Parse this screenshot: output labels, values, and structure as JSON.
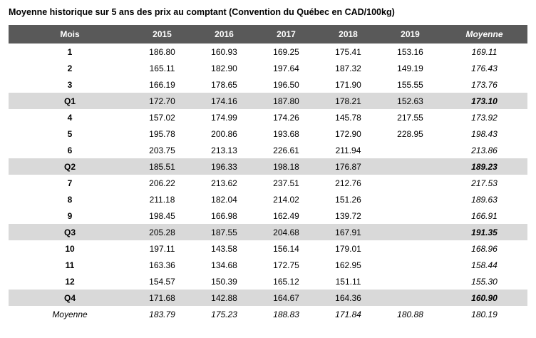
{
  "title": "Moyenne historique sur 5 ans des prix au comptant (Convention du Québec en CAD/100kg)",
  "colors": {
    "header_bg": "#595959",
    "header_text": "#ffffff",
    "quarter_row_bg": "#d9d9d9"
  },
  "table": {
    "columns": [
      "Mois",
      "2015",
      "2016",
      "2017",
      "2018",
      "2019",
      "Moyenne"
    ],
    "rows": [
      {
        "type": "month",
        "label": "1",
        "values": [
          "186.80",
          "160.93",
          "169.25",
          "175.41",
          "153.16",
          "169.11"
        ]
      },
      {
        "type": "month",
        "label": "2",
        "values": [
          "165.11",
          "182.90",
          "197.64",
          "187.32",
          "149.19",
          "176.43"
        ]
      },
      {
        "type": "month",
        "label": "3",
        "values": [
          "166.19",
          "178.65",
          "196.50",
          "171.90",
          "155.55",
          "173.76"
        ]
      },
      {
        "type": "quarter",
        "label": "Q1",
        "values": [
          "172.70",
          "174.16",
          "187.80",
          "178.21",
          "152.63",
          "173.10"
        ]
      },
      {
        "type": "month",
        "label": "4",
        "values": [
          "157.02",
          "174.99",
          "174.26",
          "145.78",
          "217.55",
          "173.92"
        ]
      },
      {
        "type": "month",
        "label": "5",
        "values": [
          "195.78",
          "200.86",
          "193.68",
          "172.90",
          "228.95",
          "198.43"
        ]
      },
      {
        "type": "month",
        "label": "6",
        "values": [
          "203.75",
          "213.13",
          "226.61",
          "211.94",
          "",
          "213.86"
        ]
      },
      {
        "type": "quarter",
        "label": "Q2",
        "values": [
          "185.51",
          "196.33",
          "198.18",
          "176.87",
          "",
          "189.23"
        ]
      },
      {
        "type": "month",
        "label": "7",
        "values": [
          "206.22",
          "213.62",
          "237.51",
          "212.76",
          "",
          "217.53"
        ]
      },
      {
        "type": "month",
        "label": "8",
        "values": [
          "211.18",
          "182.04",
          "214.02",
          "151.26",
          "",
          "189.63"
        ]
      },
      {
        "type": "month",
        "label": "9",
        "values": [
          "198.45",
          "166.98",
          "162.49",
          "139.72",
          "",
          "166.91"
        ]
      },
      {
        "type": "quarter",
        "label": "Q3",
        "values": [
          "205.28",
          "187.55",
          "204.68",
          "167.91",
          "",
          "191.35"
        ]
      },
      {
        "type": "month",
        "label": "10",
        "values": [
          "197.11",
          "143.58",
          "156.14",
          "179.01",
          "",
          "168.96"
        ]
      },
      {
        "type": "month",
        "label": "11",
        "values": [
          "163.36",
          "134.68",
          "172.75",
          "162.95",
          "",
          "158.44"
        ]
      },
      {
        "type": "month",
        "label": "12",
        "values": [
          "154.57",
          "150.39",
          "165.12",
          "151.11",
          "",
          "155.30"
        ]
      },
      {
        "type": "quarter",
        "label": "Q4",
        "values": [
          "171.68",
          "142.88",
          "164.67",
          "164.36",
          "",
          "160.90"
        ]
      },
      {
        "type": "average",
        "label": "Moyenne",
        "values": [
          "183.79",
          "175.23",
          "188.83",
          "171.84",
          "180.88",
          "180.19"
        ]
      }
    ]
  }
}
